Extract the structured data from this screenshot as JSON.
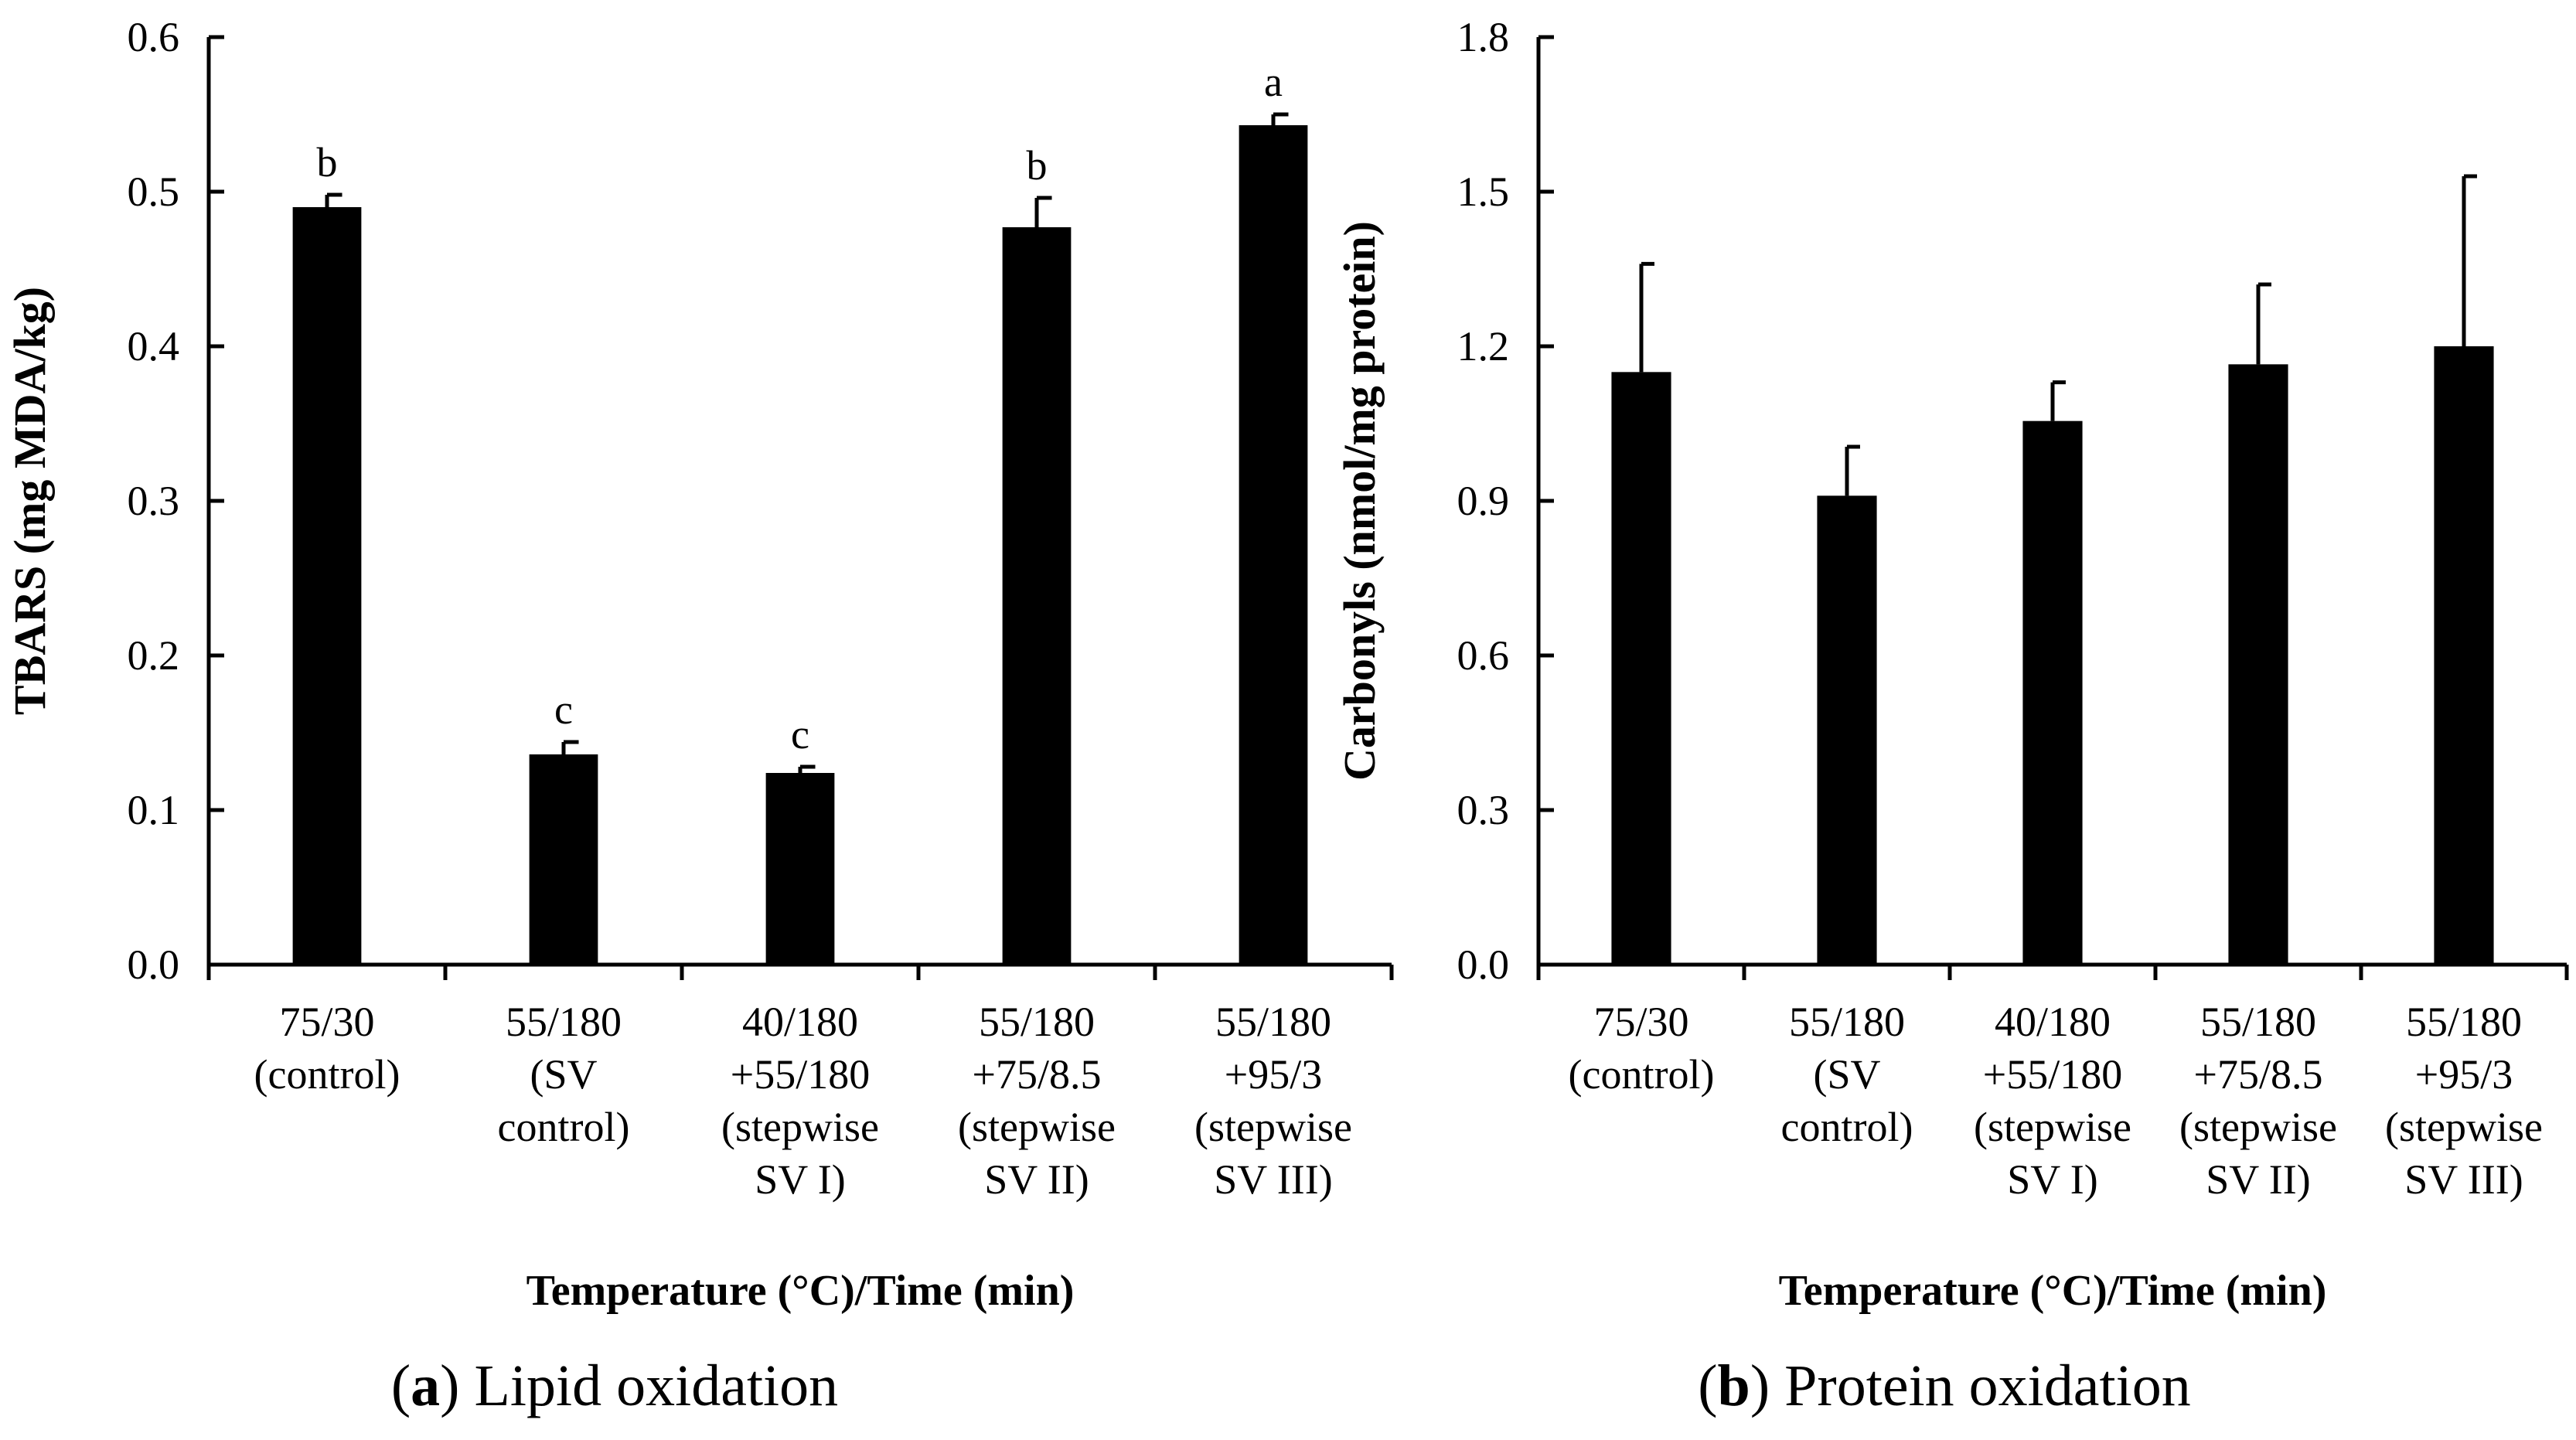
{
  "chart_data": [
    {
      "type": "bar",
      "panel": "a",
      "caption_label": "a",
      "caption_text": "Lipid oxidation",
      "categories": [
        [
          "75/30",
          "(control)"
        ],
        [
          "55/180",
          "(SV",
          "control)"
        ],
        [
          "40/180",
          "+55/180",
          "(stepwise",
          "SV I)"
        ],
        [
          "55/180",
          "+75/8.5",
          "(stepwise",
          "SV II)"
        ],
        [
          "55/180",
          "+95/3",
          "(stepwise",
          "SV III)"
        ]
      ],
      "values": [
        0.49,
        0.136,
        0.124,
        0.477,
        0.543
      ],
      "errors": [
        0.008,
        0.008,
        0.004,
        0.019,
        0.007
      ],
      "significance": [
        "b",
        "c",
        "c",
        "b",
        "a"
      ],
      "ylabel": "TBARS (mg MDA/kg)",
      "xlabel": "Temperature (°C)/Time (min)",
      "ylim": [
        0,
        0.6
      ],
      "yticks": [
        "0.0",
        "0.1",
        "0.2",
        "0.3",
        "0.4",
        "0.5",
        "0.6"
      ],
      "grid": false
    },
    {
      "type": "bar",
      "panel": "b",
      "caption_label": "b",
      "caption_text": "Protein oxidation",
      "categories": [
        [
          "75/30",
          "(control)"
        ],
        [
          "55/180",
          "(SV",
          "control)"
        ],
        [
          "40/180",
          "+55/180",
          "(stepwise",
          "SV I)"
        ],
        [
          "55/180",
          "+75/8.5",
          "(stepwise",
          "SV II)"
        ],
        [
          "55/180",
          "+95/3",
          "(stepwise",
          "SV III)"
        ]
      ],
      "values": [
        1.15,
        0.91,
        1.055,
        1.165,
        1.2
      ],
      "errors": [
        0.21,
        0.095,
        0.075,
        0.155,
        0.33
      ],
      "significance": [
        "",
        "",
        "",
        "",
        ""
      ],
      "ylabel": "Carbonyls (nmol/mg protein)",
      "xlabel": "Temperature (°C)/Time (min)",
      "ylim": [
        0,
        1.8
      ],
      "yticks": [
        "0.0",
        "0.3",
        "0.6",
        "0.9",
        "1.2",
        "1.5",
        "1.8"
      ],
      "grid": false
    }
  ],
  "colors": {
    "bar": "#000000",
    "axis": "#000000",
    "background": "#ffffff"
  }
}
